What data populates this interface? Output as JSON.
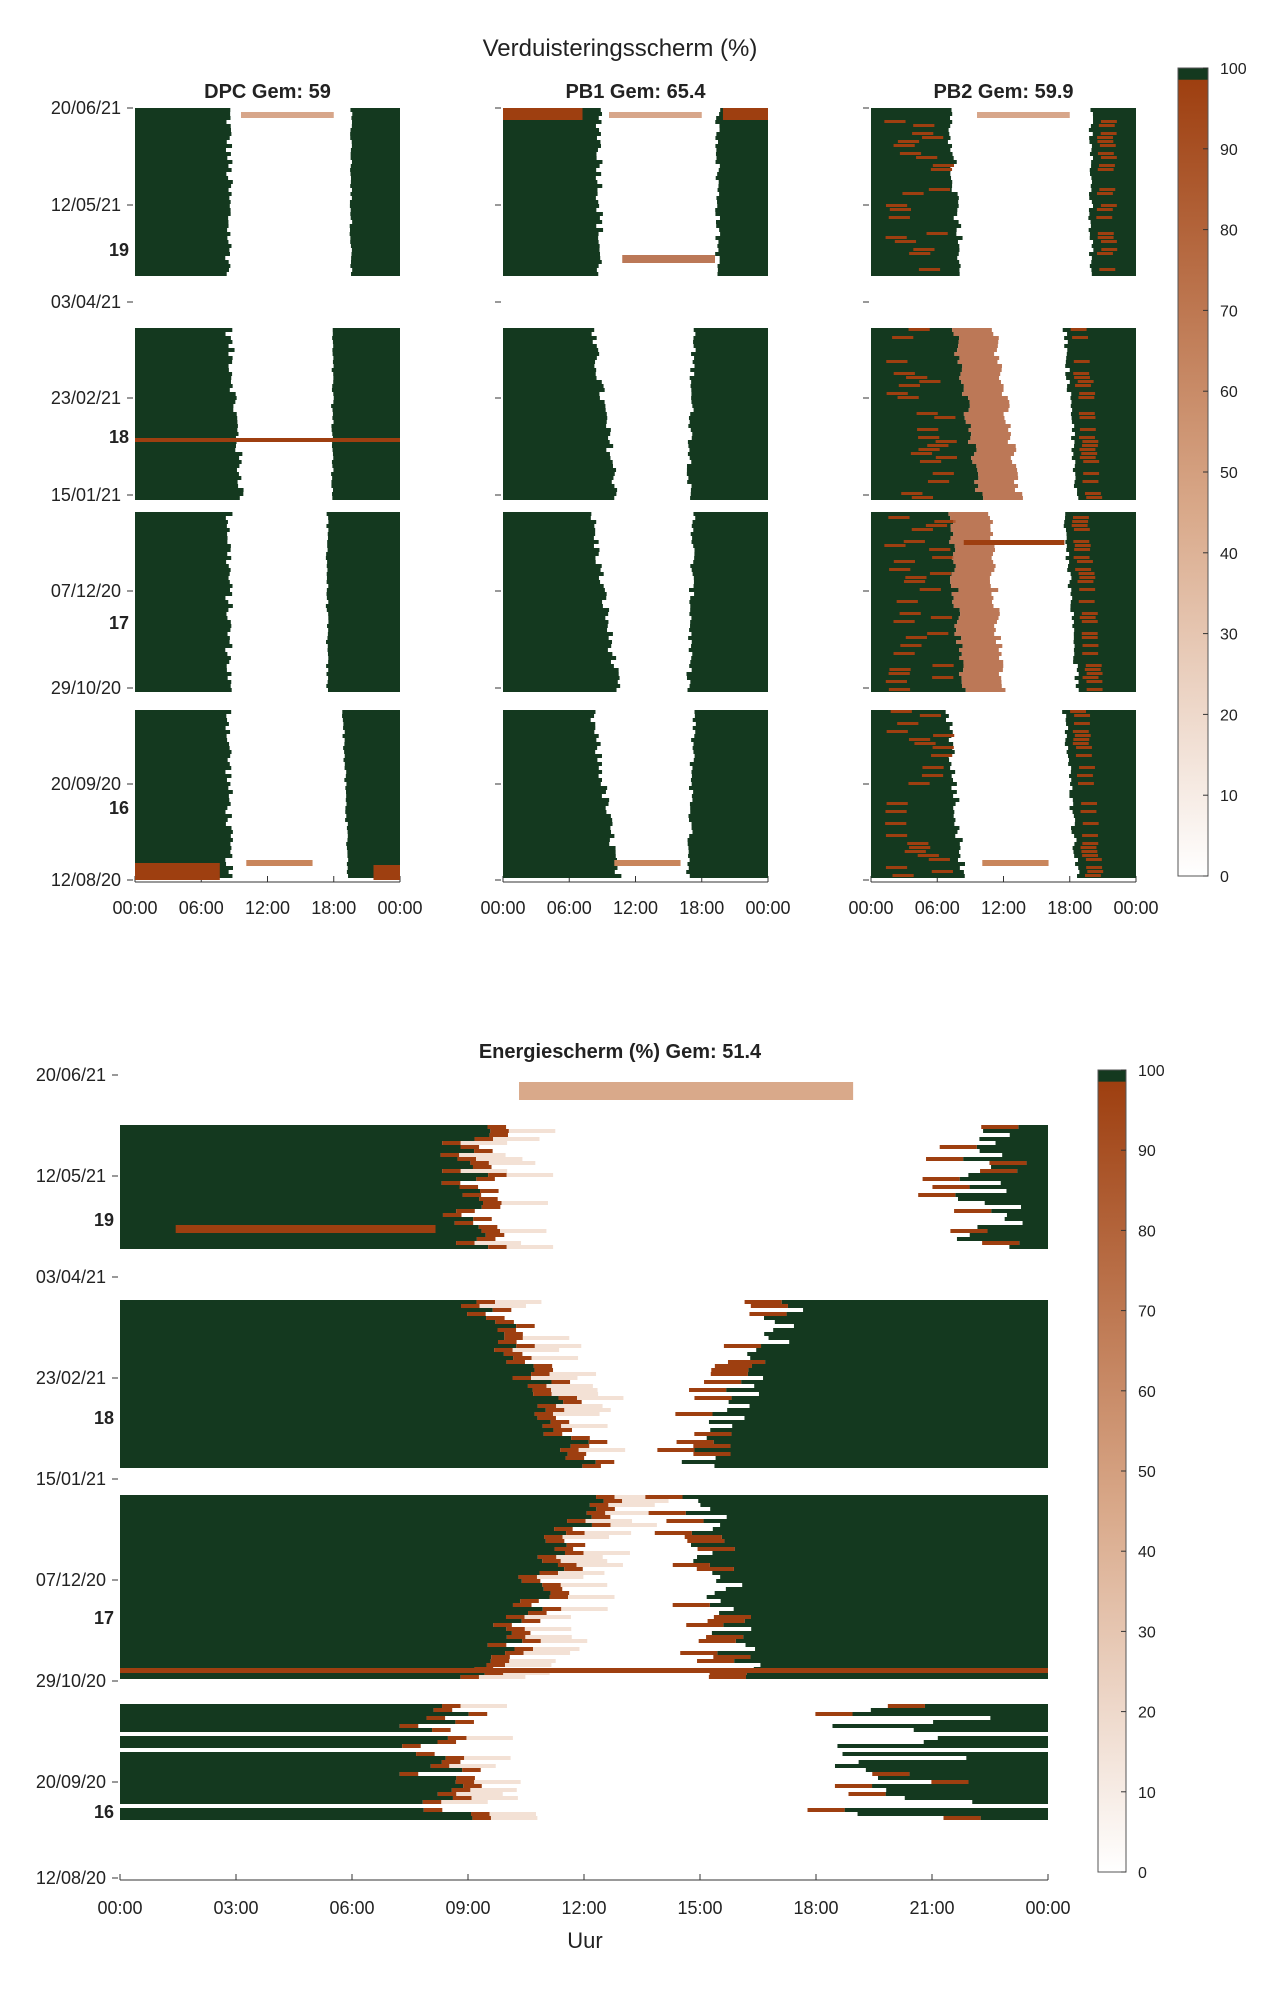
{
  "chart_data": [
    {
      "id": "top",
      "type": "heatmap",
      "title": "Verduisteringsscherm (%)",
      "x_ticks": [
        "00:00",
        "06:00",
        "12:00",
        "18:00",
        "00:00"
      ],
      "y_ticks": [
        "20/06/21",
        "12/05/21",
        "03/04/21",
        "23/02/21",
        "15/01/21",
        "07/12/20",
        "29/10/20",
        "20/09/20",
        "12/08/20"
      ],
      "week_labels": [
        "19",
        "18",
        "17",
        "16"
      ],
      "panels": [
        {
          "title": "DPC Gem: 59",
          "mean": 59
        },
        {
          "title": "PB1 Gem: 65.4",
          "mean": 65.4
        },
        {
          "title": "PB2 Gem: 59.9",
          "mean": 59.9
        }
      ],
      "colorbar": {
        "min": 0,
        "max": 100,
        "ticks": [
          "100",
          "90",
          "80",
          "70",
          "60",
          "50",
          "40",
          "30",
          "20",
          "10",
          "0"
        ]
      }
    },
    {
      "id": "bottom",
      "type": "heatmap",
      "title": "Energiescherm (%) Gem: 51.4",
      "mean": 51.4,
      "xlabel": "Uur",
      "x_ticks": [
        "00:00",
        "03:00",
        "06:00",
        "09:00",
        "12:00",
        "15:00",
        "18:00",
        "21:00",
        "00:00"
      ],
      "y_ticks": [
        "20/06/21",
        "12/05/21",
        "03/04/21",
        "23/02/21",
        "15/01/21",
        "07/12/20",
        "29/10/20",
        "20/09/20",
        "12/08/20"
      ],
      "week_labels": [
        "19",
        "18",
        "17",
        "16"
      ],
      "colorbar": {
        "min": 0,
        "max": 100,
        "ticks": [
          "100",
          "90",
          "80",
          "70",
          "60",
          "50",
          "40",
          "30",
          "20",
          "10",
          "0"
        ]
      }
    }
  ],
  "colors": {
    "dark_green": "#14391f",
    "rust": "#9e3f10",
    "light": "#f3e1d5"
  }
}
